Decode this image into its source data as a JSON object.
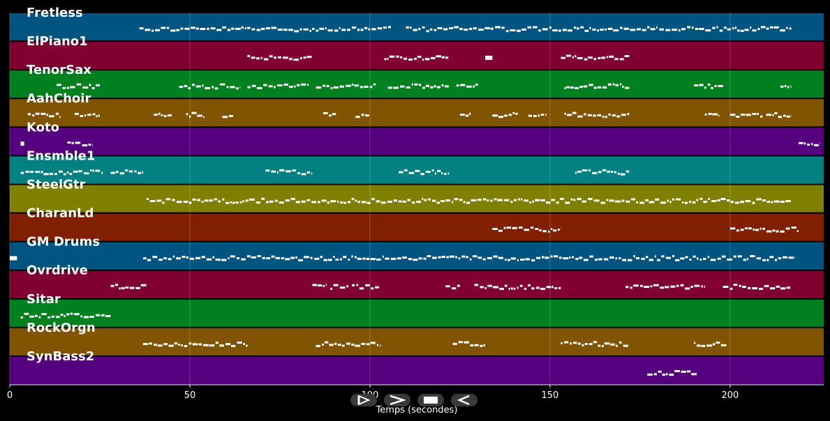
{
  "chart_data": {
    "type": "piano-roll",
    "xlabel": "Temps (secondes)",
    "xlim": [
      0,
      226
    ],
    "xticks": [
      0,
      50,
      100,
      150,
      200
    ],
    "grid": true,
    "tracks": [
      {
        "name": "Fretless",
        "color": "#005480",
        "segments": [
          [
            36,
            106
          ],
          [
            110,
            217
          ]
        ]
      },
      {
        "name": "ElPiano1",
        "color": "#800030",
        "segments": [
          [
            66,
            84
          ],
          [
            104,
            122
          ],
          [
            132,
            134
          ],
          [
            153,
            172
          ]
        ]
      },
      {
        "name": "TenorSax",
        "color": "#00801e",
        "segments": [
          [
            13,
            25
          ],
          [
            47,
            64
          ],
          [
            66,
            83
          ],
          [
            85,
            102
          ],
          [
            105,
            122
          ],
          [
            124,
            130
          ],
          [
            154,
            172
          ],
          [
            190,
            198
          ],
          [
            214,
            217
          ]
        ]
      },
      {
        "name": "AahChoir",
        "color": "#805400",
        "segments": [
          [
            5,
            14
          ],
          [
            18,
            25
          ],
          [
            40,
            45
          ],
          [
            49,
            54
          ],
          [
            59,
            62
          ],
          [
            87,
            91
          ],
          [
            96,
            100
          ],
          [
            125,
            128
          ],
          [
            134,
            141
          ],
          [
            144,
            149
          ],
          [
            154,
            172
          ],
          [
            193,
            197
          ],
          [
            200,
            209
          ],
          [
            210,
            217
          ]
        ]
      },
      {
        "name": "Koto",
        "color": "#54007f",
        "segments": [
          [
            3,
            4
          ],
          [
            16,
            23
          ],
          [
            219,
            225
          ]
        ]
      },
      {
        "name": "Ensmble1",
        "color": "#008080",
        "segments": [
          [
            3,
            26
          ],
          [
            28,
            37
          ],
          [
            71,
            84
          ],
          [
            108,
            122
          ],
          [
            157,
            172
          ]
        ]
      },
      {
        "name": "SteelGtr",
        "color": "#808000",
        "segments": [
          [
            38,
            217
          ]
        ]
      },
      {
        "name": "CharanLd",
        "color": "#802000",
        "segments": [
          [
            134,
            153
          ],
          [
            200,
            219
          ]
        ]
      },
      {
        "name": "GM Drums",
        "color": "#005480",
        "segments": [
          [
            0,
            2
          ],
          [
            37,
            218
          ]
        ]
      },
      {
        "name": "Ovrdrive",
        "color": "#800030",
        "segments": [
          [
            28,
            38
          ],
          [
            84,
            88
          ],
          [
            89,
            94
          ],
          [
            95,
            103
          ],
          [
            121,
            125
          ],
          [
            129,
            153
          ],
          [
            171,
            193
          ],
          [
            198,
            217
          ]
        ]
      },
      {
        "name": "Sitar",
        "color": "#00801e",
        "segments": [
          [
            3,
            28
          ]
        ]
      },
      {
        "name": "RockOrgn",
        "color": "#805400",
        "segments": [
          [
            37,
            66
          ],
          [
            85,
            103
          ],
          [
            123,
            132
          ],
          [
            153,
            172
          ],
          [
            190,
            199
          ]
        ]
      },
      {
        "name": "SynBass2",
        "color": "#54007f",
        "segments": [
          [
            177,
            191
          ]
        ]
      }
    ]
  },
  "controls": [
    {
      "name": "play-icon"
    },
    {
      "name": "next-icon"
    },
    {
      "name": "stop-icon"
    },
    {
      "name": "previous-icon"
    }
  ]
}
